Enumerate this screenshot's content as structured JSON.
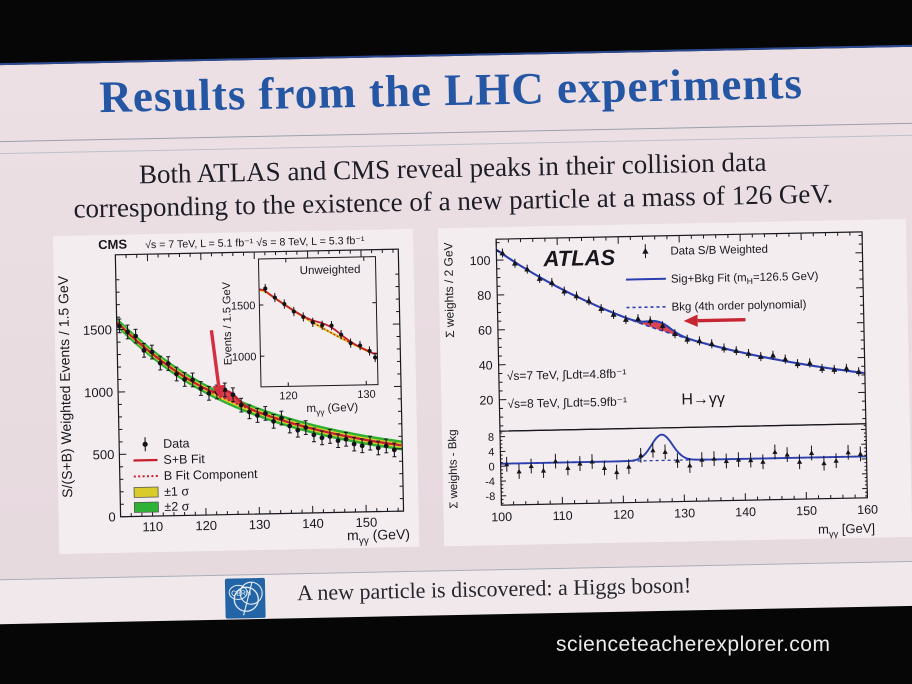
{
  "photo": {
    "watermark": "scienceteacherexplorer.com"
  },
  "slide": {
    "title": "Results from the LHC experiments",
    "subtitle": [
      "Both ATLAS and CMS reveal peaks in their collision data",
      "corresponding to the existence of a new particle at a mass of 126 GeV."
    ],
    "footer": {
      "cern_label": "CERN",
      "text": "A new particle is discovered: a Higgs boson!"
    }
  },
  "colors": {
    "title_blue": "#2456a4",
    "slide_bg": "#e9dce1",
    "panel_bg": "#f4edf0",
    "cern_blue": "#2264a5",
    "black_frame": "#060606"
  },
  "chart_data": [
    {
      "id": "cms",
      "type": "line",
      "experiment": "CMS",
      "header": "√s = 7 TeV, L = 5.1 fb⁻¹  √s = 8 TeV, L = 5.3 fb⁻¹",
      "ylabel": "S/(S+B) Weighted Events / 1.5 GeV",
      "xlabel": {
        "base": "m",
        "sub": "γγ",
        "unit": " (GeV)"
      },
      "xlim": [
        104,
        157
      ],
      "ylim": [
        0,
        2100
      ],
      "xticks": [
        110,
        120,
        130,
        140,
        150
      ],
      "yticks": [
        0,
        500,
        1000,
        1500
      ],
      "legend": [
        "Data",
        "S+B Fit",
        "B Fit Component",
        "±1 σ",
        "±2 σ"
      ],
      "background_fit": {
        "x": [
          104,
          106,
          108,
          110,
          112,
          114,
          116,
          118,
          120,
          122,
          124,
          126,
          128,
          130,
          132,
          134,
          136,
          138,
          140,
          142,
          144,
          146,
          148,
          150,
          152,
          154,
          156,
          157
        ],
        "y": [
          1560,
          1475,
          1395,
          1320,
          1250,
          1185,
          1125,
          1070,
          1020,
          973,
          930,
          890,
          853,
          818,
          786,
          756,
          728,
          702,
          678,
          655,
          634,
          614,
          596,
          578,
          562,
          547,
          533,
          526
        ]
      },
      "signal": {
        "mu": 124.8,
        "sigma": 1.6,
        "amplitude": 70
      },
      "bands": {
        "one_sigma": 20,
        "two_sigma": 40
      },
      "data_points": {
        "x": [
          104.5,
          106,
          107.5,
          109,
          110.5,
          112,
          113.5,
          115,
          116.5,
          118,
          119.5,
          121,
          122.5,
          124,
          125.5,
          127,
          128.5,
          130,
          131.5,
          133,
          134.5,
          136,
          137.5,
          139,
          140.5,
          142,
          143.5,
          145,
          146.5,
          148,
          149.5,
          151,
          152.5,
          154,
          155.5
        ],
        "y": [
          1530,
          1480,
          1445,
          1330,
          1315,
          1225,
          1220,
          1135,
          1090,
          1085,
          1015,
          975,
          985,
          1000,
          960,
          875,
          820,
          790,
          805,
          740,
          765,
          700,
          665,
          685,
          625,
          600,
          610,
          575,
          585,
          545,
          530,
          550,
          510,
          525,
          492
        ],
        "yerr": 55
      },
      "arrow": {
        "x1": 121.7,
        "y1": 1480,
        "x2": 123.1,
        "y2": 940
      },
      "inset": {
        "label": "Unweighted",
        "ylabel": "Events / 1.5 GeV",
        "xlabel": {
          "base": "m",
          "sub": "γγ",
          "unit": " (GeV)"
        },
        "xlim": [
          116.5,
          131.5
        ],
        "ylim": [
          700,
          1950
        ],
        "xticks": [
          120,
          130
        ],
        "yticks": [
          1000,
          1500
        ],
        "background_fit": {
          "x": [
            117,
            119,
            121,
            123,
            125,
            127,
            129,
            131
          ],
          "y": [
            1650,
            1537,
            1432,
            1333,
            1242,
            1157,
            1078,
            1004
          ]
        },
        "signal": {
          "mu": 125.4,
          "sigma": 1.5,
          "amplitude": 55
        },
        "band_one_sigma": 14,
        "data_points": {
          "x": [
            117.3,
            118.5,
            119.7,
            120.9,
            122.1,
            123.3,
            124.5,
            125.7,
            126.9,
            128.1,
            129.3,
            130.5,
            131.2
          ],
          "y": [
            1660,
            1570,
            1505,
            1430,
            1375,
            1320,
            1290,
            1285,
            1195,
            1110,
            1085,
            1030,
            965
          ],
          "yerr": 45
        }
      },
      "colors": {
        "fit": "#c41e2f",
        "band1": "#d8cb2a",
        "band2": "#2fb135",
        "data": "#141418",
        "signal_fill": "#e23a4c",
        "arrow": "#d32f3f"
      }
    },
    {
      "id": "atlas",
      "type": "line",
      "experiment": "ATLAS",
      "legend_data": "Data S/B Weighted",
      "legend_fit": {
        "pre": "Sig+Bkg Fit (m",
        "sub": "H",
        "post": "=126.5 GeV)"
      },
      "legend_bkg": "Bkg (4th order polynomial)",
      "lumi1": "√s=7 TeV, ∫Ldt=4.8fb⁻¹",
      "lumi2": "√s=8 TeV, ∫Ldt=5.9fb⁻¹",
      "process": "H→γγ",
      "ylabel_main": "Σ weights / 2 GeV",
      "ylabel_sub": "Σ weights - Bkg",
      "xlabel": {
        "base": "m",
        "sub": "γγ",
        "unit": " [GeV]"
      },
      "xlim": [
        100,
        160
      ],
      "ylim_main": [
        2,
        112
      ],
      "ylim_sub": [
        -10.5,
        9.5
      ],
      "xticks": [
        100,
        110,
        120,
        130,
        140,
        150,
        160
      ],
      "yticks_main": [
        20,
        40,
        60,
        80,
        100
      ],
      "yticks_sub": [
        -8,
        -4,
        0,
        4,
        8
      ],
      "background_fit": {
        "x": [
          100,
          102,
          104,
          106,
          108,
          110,
          112,
          114,
          116,
          118,
          120,
          122,
          124,
          126,
          128,
          130,
          132,
          134,
          136,
          138,
          140,
          142,
          144,
          146,
          148,
          150,
          152,
          154,
          156,
          158,
          160
        ],
        "y": [
          106,
          101,
          96.3,
          91.9,
          87.7,
          83.8,
          80,
          76.5,
          73.1,
          69.9,
          66.9,
          64,
          61.3,
          58.7,
          56.3,
          54,
          51.8,
          49.7,
          47.8,
          45.9,
          44.2,
          42.5,
          41,
          39.5,
          38.1,
          36.8,
          35.5,
          34.3,
          33.2,
          32.1,
          31.1
        ]
      },
      "signal": {
        "mu": 126.5,
        "sigma": 1.8,
        "amplitude": 4.6
      },
      "data_points": {
        "x": [
          101,
          103,
          105,
          107,
          109,
          111,
          113,
          115,
          117,
          119,
          121,
          123,
          125,
          127,
          129,
          131,
          133,
          135,
          137,
          139,
          141,
          143,
          145,
          147,
          149,
          151,
          153,
          155,
          157,
          159
        ],
        "y": [
          104,
          98,
          94.5,
          89,
          86.5,
          81.5,
          78.6,
          75.6,
          71,
          67.5,
          64.5,
          64.8,
          63.5,
          60.5,
          55.8,
          52.5,
          51.4,
          49.6,
          47,
          45.4,
          43.6,
          41.7,
          42.3,
          40,
          37.2,
          37.5,
          34.2,
          33.5,
          34,
          31.9
        ],
        "yerr": 2.6
      },
      "residual_points": {
        "x": [
          101,
          103,
          105,
          107,
          109,
          111,
          113,
          115,
          117,
          119,
          121,
          123,
          125,
          127,
          129,
          131,
          133,
          135,
          137,
          139,
          141,
          143,
          145,
          147,
          149,
          151,
          153,
          155,
          157,
          159
        ],
        "y": [
          0.5,
          -1.5,
          -0.1,
          -1.4,
          1.1,
          -0.8,
          0.3,
          0.8,
          -1.0,
          -2.2,
          -0.8,
          2.2,
          3.5,
          3.0,
          0.6,
          -0.8,
          0.7,
          0.9,
          0.2,
          0.5,
          0.3,
          -0.2,
          2.4,
          1.6,
          -0.4,
          1.9,
          -0.9,
          -0.3,
          1.9,
          1.4
        ],
        "yerr": 2.0
      },
      "residual_signal": {
        "base": 0.7,
        "mu": 126.5,
        "sigma": 1.7,
        "amplitude": 7.0
      },
      "arrow": {
        "x1": 140.6,
        "y1": 63,
        "x2": 130.8,
        "y2": 63
      },
      "colors": {
        "fit": "#2b3faf",
        "data": "#15151c",
        "signal_fill": "#d93a4a",
        "arrow": "#c62631"
      }
    }
  ]
}
